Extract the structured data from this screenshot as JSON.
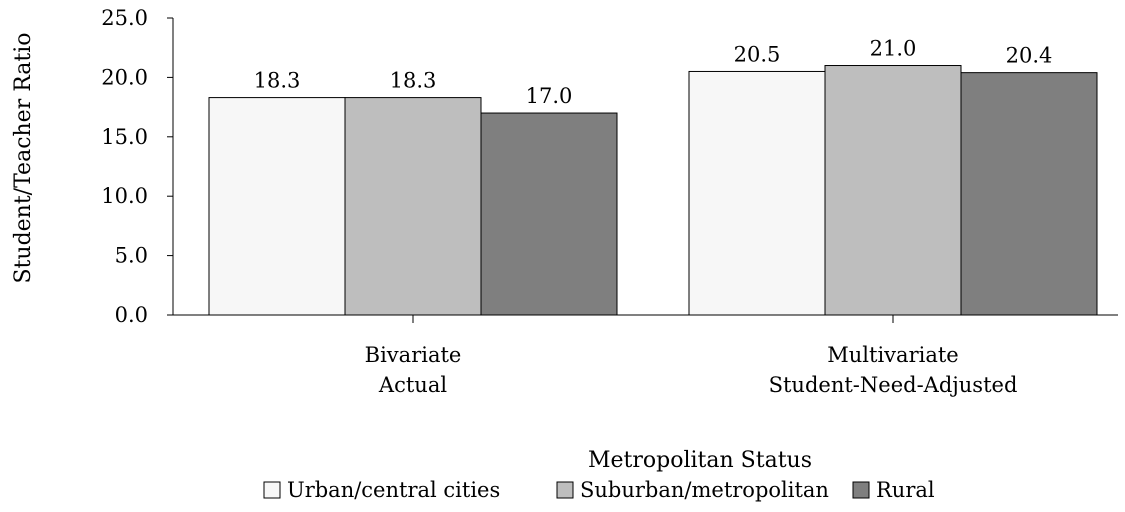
{
  "chart_data": {
    "type": "bar",
    "ylabel": "Student/Teacher Ratio",
    "ylim": [
      0,
      25
    ],
    "yticks": [
      "0.0",
      "5.0",
      "10.0",
      "15.0",
      "20.0",
      "25.0"
    ],
    "categories": [
      [
        "Bivariate",
        "Actual"
      ],
      [
        "Multivariate",
        "Student-Need-Adjusted"
      ]
    ],
    "series": [
      {
        "name": "Urban/central cities",
        "values": [
          18.3,
          20.5
        ],
        "labels": [
          "18.3",
          "20.5"
        ],
        "color": "#f7f7f7"
      },
      {
        "name": "Suburban/metropolitan",
        "values": [
          18.3,
          21.0
        ],
        "labels": [
          "18.3",
          "21.0"
        ],
        "color": "#bebebe"
      },
      {
        "name": "Rural",
        "values": [
          17.0,
          20.4
        ],
        "labels": [
          "17.0",
          "20.4"
        ],
        "color": "#7f7f7f"
      }
    ],
    "legend_title": "Metropolitan Status",
    "legend_position": "bottom",
    "grid": false
  }
}
